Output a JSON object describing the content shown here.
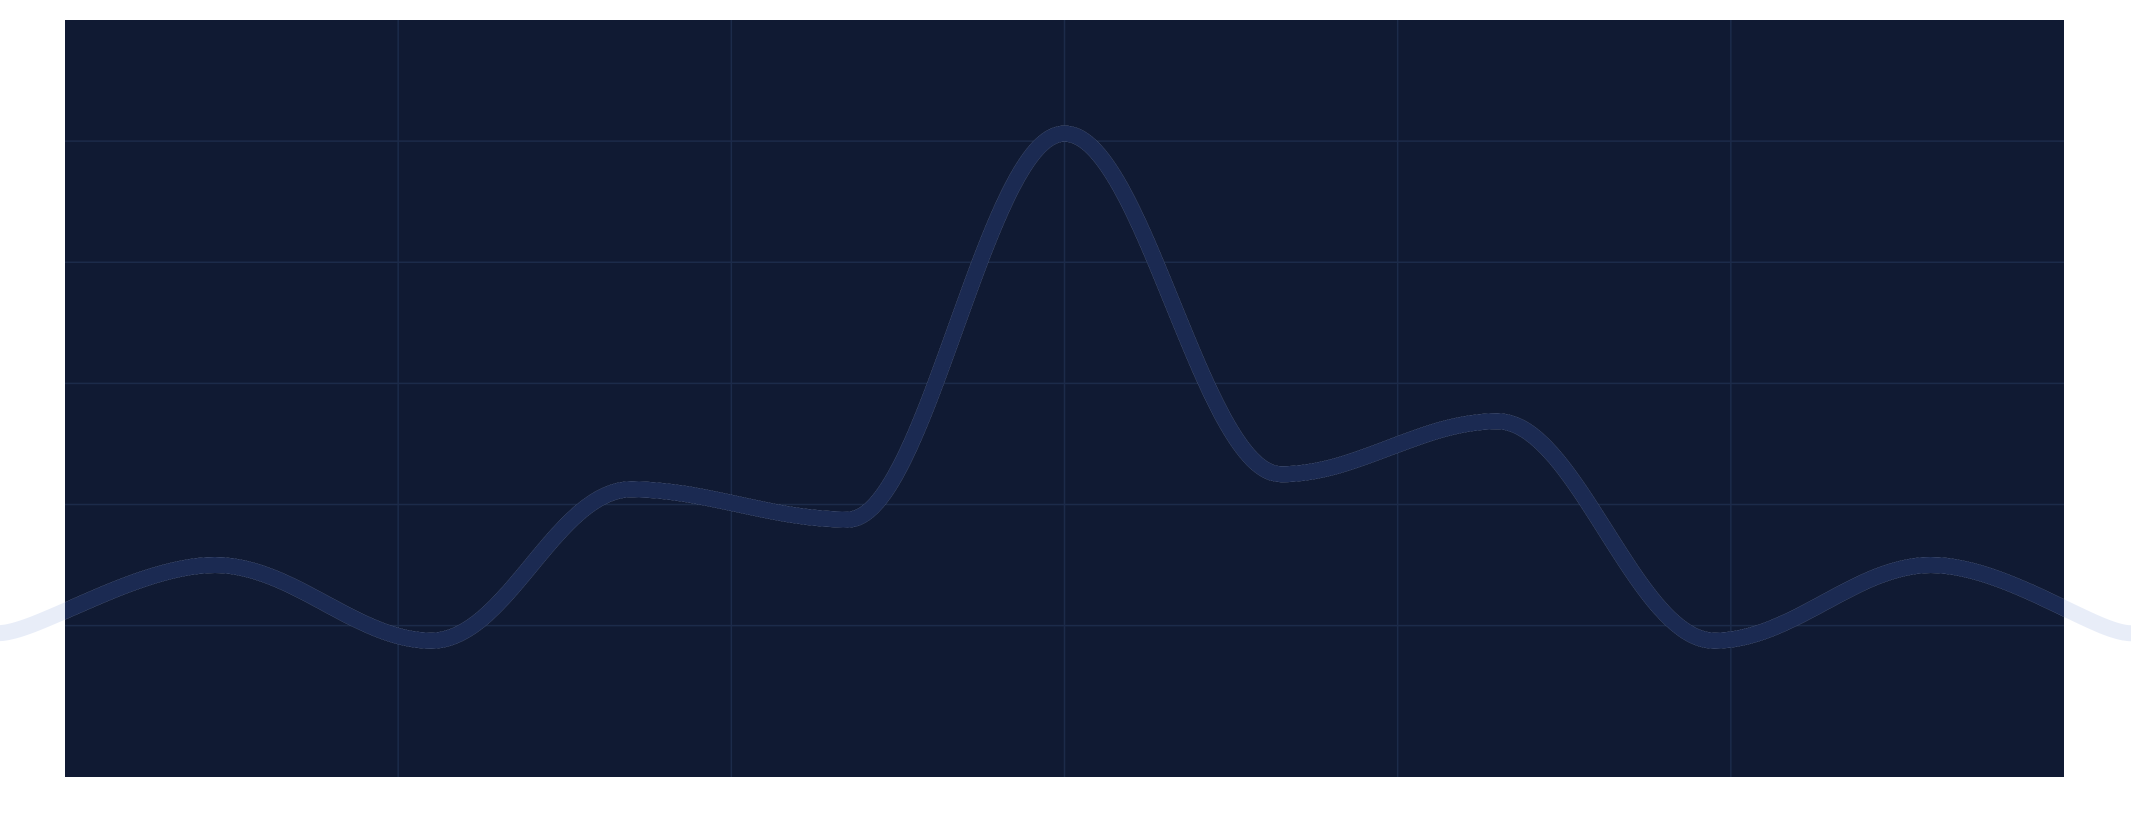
{
  "colors": {
    "page_background": "#ffffff",
    "panel_background": "#101a33",
    "gridline": "#1c2b4a",
    "line_inside": "#1b2a52",
    "line_outside": "#e8edf8"
  },
  "chart_data": {
    "type": "line",
    "title": "",
    "xlabel": "",
    "ylabel": "",
    "grid": true,
    "axes_visible": false,
    "legend": "none",
    "xlim": [
      -6,
      6
    ],
    "ylim": [
      0,
      100
    ],
    "x_grid_values": [
      -4,
      -2,
      0,
      2,
      4
    ],
    "y_grid_values": [
      20,
      36,
      52,
      68,
      84
    ],
    "series": [
      {
        "values": [
          {
            "x": -6.4,
            "y": 19
          },
          {
            "x": -5.1,
            "y": 28
          },
          {
            "x": -3.8,
            "y": 18
          },
          {
            "x": -2.6,
            "y": 38
          },
          {
            "x": -1.3,
            "y": 34
          },
          {
            "x": 0,
            "y": 85
          },
          {
            "x": 1.3,
            "y": 40
          },
          {
            "x": 2.6,
            "y": 47
          },
          {
            "x": 3.9,
            "y": 18
          },
          {
            "x": 5.2,
            "y": 28
          },
          {
            "x": 6.4,
            "y": 19
          }
        ]
      }
    ]
  }
}
